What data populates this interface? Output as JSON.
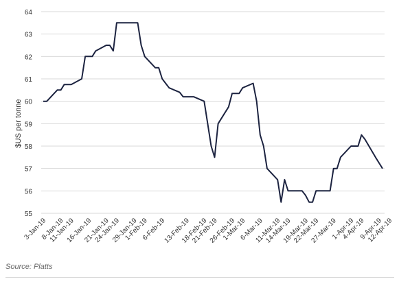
{
  "chart_data": {
    "type": "line",
    "ylabel": "$US per tonne",
    "ylim": [
      55,
      64
    ],
    "yticks": [
      "55",
      "56",
      "57",
      "58",
      "59",
      "60",
      "61",
      "62",
      "63",
      "64"
    ],
    "grid": "horizontal",
    "line_color": "#1c2340",
    "grid_color": "#d9d9d9",
    "xtick_labels": [
      "3-Jan-19",
      "8-Jan-19",
      "11-Jan-19",
      "16-Jan-19",
      "21-Jan-19",
      "24-Jan-19",
      "29-Jan-19",
      "1-Feb-19",
      "6-Feb-19",
      "13-Feb-19",
      "18-Feb-19",
      "21-Feb-19",
      "26-Feb-19",
      "1-Mar-19",
      "6-Mar-19",
      "11-Mar-19",
      "14-Mar-19",
      "19-Mar-19",
      "22-Mar-19",
      "27-Mar-19",
      "1-Apr-19",
      "4-Apr-19",
      "9-Apr-19",
      "12-Apr-19"
    ],
    "series": [
      {
        "points": [
          [
            "3-Jan-19",
            60.0
          ],
          [
            "4-Jan-19",
            60.0
          ],
          [
            "7-Jan-19",
            60.5
          ],
          [
            "8-Jan-19",
            60.5
          ],
          [
            "9-Jan-19",
            60.75
          ],
          [
            "10-Jan-19",
            60.75
          ],
          [
            "11-Jan-19",
            60.75
          ],
          [
            "14-Jan-19",
            61.0
          ],
          [
            "15-Jan-19",
            62.0
          ],
          [
            "16-Jan-19",
            62.0
          ],
          [
            "17-Jan-19",
            62.0
          ],
          [
            "18-Jan-19",
            62.25
          ],
          [
            "21-Jan-19",
            62.5
          ],
          [
            "22-Jan-19",
            62.5
          ],
          [
            "23-Jan-19",
            62.25
          ],
          [
            "24-Jan-19",
            63.5
          ],
          [
            "25-Jan-19",
            63.5
          ],
          [
            "28-Jan-19",
            63.5
          ],
          [
            "29-Jan-19",
            63.5
          ],
          [
            "30-Jan-19",
            63.5
          ],
          [
            "31-Jan-19",
            62.5
          ],
          [
            "1-Feb-19",
            62.0
          ],
          [
            "4-Feb-19",
            61.5
          ],
          [
            "5-Feb-19",
            61.5
          ],
          [
            "6-Feb-19",
            61.0
          ],
          [
            "7-Feb-19",
            60.8
          ],
          [
            "8-Feb-19",
            60.6
          ],
          [
            "11-Feb-19",
            60.4
          ],
          [
            "12-Feb-19",
            60.2
          ],
          [
            "13-Feb-19",
            60.2
          ],
          [
            "14-Feb-19",
            60.2
          ],
          [
            "15-Feb-19",
            60.2
          ],
          [
            "18-Feb-19",
            60.0
          ],
          [
            "19-Feb-19",
            59.0
          ],
          [
            "20-Feb-19",
            58.0
          ],
          [
            "21-Feb-19",
            57.5
          ],
          [
            "22-Feb-19",
            59.0
          ],
          [
            "25-Feb-19",
            59.75
          ],
          [
            "26-Feb-19",
            60.35
          ],
          [
            "27-Feb-19",
            60.35
          ],
          [
            "28-Feb-19",
            60.35
          ],
          [
            "1-Mar-19",
            60.6
          ],
          [
            "4-Mar-19",
            60.8
          ],
          [
            "5-Mar-19",
            60.0
          ],
          [
            "6-Mar-19",
            58.5
          ],
          [
            "7-Mar-19",
            58.0
          ],
          [
            "8-Mar-19",
            57.0
          ],
          [
            "11-Mar-19",
            56.5
          ],
          [
            "12-Mar-19",
            55.5
          ],
          [
            "13-Mar-19",
            56.5
          ],
          [
            "14-Mar-19",
            56.0
          ],
          [
            "15-Mar-19",
            56.0
          ],
          [
            "18-Mar-19",
            56.0
          ],
          [
            "19-Mar-19",
            55.8
          ],
          [
            "20-Mar-19",
            55.5
          ],
          [
            "21-Mar-19",
            55.5
          ],
          [
            "22-Mar-19",
            56.0
          ],
          [
            "25-Mar-19",
            56.0
          ],
          [
            "26-Mar-19",
            56.0
          ],
          [
            "27-Mar-19",
            57.0
          ],
          [
            "28-Mar-19",
            57.0
          ],
          [
            "29-Mar-19",
            57.5
          ],
          [
            "1-Apr-19",
            58.0
          ],
          [
            "2-Apr-19",
            58.0
          ],
          [
            "3-Apr-19",
            58.0
          ],
          [
            "4-Apr-19",
            58.5
          ],
          [
            "5-Apr-19",
            58.3
          ],
          [
            "8-Apr-19",
            57.5
          ],
          [
            "9-Apr-19",
            57.25
          ],
          [
            "10-Apr-19",
            57.0
          ]
        ]
      }
    ]
  },
  "source": "Source: Platts"
}
